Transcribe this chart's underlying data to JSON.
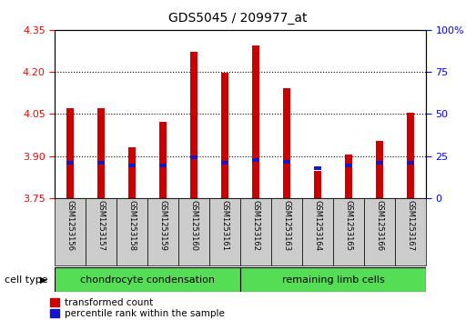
{
  "title": "GDS5045 / 209977_at",
  "categories": [
    "GSM1253156",
    "GSM1253157",
    "GSM1253158",
    "GSM1253159",
    "GSM1253160",
    "GSM1253161",
    "GSM1253162",
    "GSM1253163",
    "GSM1253164",
    "GSM1253165",
    "GSM1253166",
    "GSM1253167"
  ],
  "red_values": [
    4.07,
    4.07,
    3.93,
    4.02,
    4.27,
    4.195,
    4.295,
    4.14,
    3.845,
    3.905,
    3.955,
    4.055
  ],
  "blue_values": [
    3.875,
    3.875,
    3.865,
    3.865,
    3.895,
    3.875,
    3.885,
    3.88,
    3.855,
    3.865,
    3.875,
    3.875
  ],
  "y_min": 3.75,
  "y_max": 4.35,
  "y_ticks": [
    3.75,
    3.9,
    4.05,
    4.2,
    4.35
  ],
  "y2_ticks": [
    0,
    25,
    50,
    75,
    100
  ],
  "group1_label": "chondrocyte condensation",
  "group2_label": "remaining limb cells",
  "group1_count": 6,
  "group2_count": 6,
  "cell_type_label": "cell type",
  "legend1": "transformed count",
  "legend2": "percentile rank within the sample",
  "bar_color_red": "#cc0000",
  "bar_color_blue": "#1515cc",
  "group1_bg": "#55dd55",
  "group2_bg": "#55dd55",
  "tick_bg": "#cccccc",
  "plot_bg": "#ffffff",
  "bar_width": 0.25
}
